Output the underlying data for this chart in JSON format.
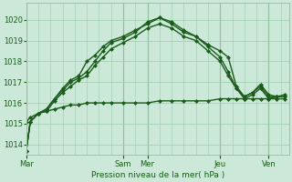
{
  "xlabel": "Pression niveau de la mer( hPa )",
  "bg_color": "#cce8d8",
  "grid_color": "#99ccaa",
  "line_color": "#1a5c1a",
  "ylim": [
    1013.5,
    1020.8
  ],
  "yticks": [
    1014,
    1015,
    1016,
    1017,
    1018,
    1019,
    1020
  ],
  "xlim": [
    0,
    130
  ],
  "day_labels": [
    "Mar",
    "Sam",
    "Mer",
    "Jeu",
    "Ven"
  ],
  "day_positions": [
    0,
    48,
    60,
    96,
    120
  ],
  "series1_x": [
    0,
    2,
    6,
    10,
    14,
    18,
    22,
    26,
    30,
    34,
    38,
    42,
    48,
    54,
    60,
    66,
    72,
    78,
    84,
    90,
    96,
    100,
    104,
    108,
    112,
    116,
    120,
    124,
    128
  ],
  "series1_y": [
    1013.7,
    1015.1,
    1015.5,
    1015.7,
    1016.2,
    1016.7,
    1017.1,
    1017.3,
    1018.0,
    1018.3,
    1018.7,
    1019.0,
    1019.2,
    1019.5,
    1019.8,
    1020.1,
    1019.9,
    1019.5,
    1019.2,
    1018.8,
    1018.5,
    1018.2,
    1016.8,
    1016.3,
    1016.5,
    1016.9,
    1016.4,
    1016.3,
    1016.4
  ],
  "series2_x": [
    0,
    2,
    6,
    10,
    14,
    18,
    22,
    26,
    30,
    34,
    38,
    42,
    48,
    54,
    60,
    66,
    72,
    78,
    84,
    90,
    96,
    100,
    104,
    108,
    112,
    116,
    120,
    124,
    128
  ],
  "series2_y": [
    1013.7,
    1015.1,
    1015.5,
    1015.7,
    1016.2,
    1016.6,
    1017.0,
    1017.2,
    1017.5,
    1018.0,
    1018.5,
    1018.9,
    1019.1,
    1019.4,
    1019.9,
    1020.1,
    1019.8,
    1019.4,
    1019.2,
    1018.7,
    1018.2,
    1017.5,
    1016.7,
    1016.3,
    1016.5,
    1016.8,
    1016.3,
    1016.3,
    1016.3
  ],
  "series3_x": [
    0,
    2,
    6,
    10,
    14,
    18,
    22,
    26,
    30,
    34,
    38,
    42,
    48,
    54,
    60,
    66,
    72,
    78,
    84,
    90,
    96,
    100,
    104,
    108,
    112,
    116,
    120,
    124,
    128
  ],
  "series3_y": [
    1013.7,
    1015.1,
    1015.5,
    1015.6,
    1016.1,
    1016.5,
    1016.8,
    1017.1,
    1017.3,
    1017.8,
    1018.2,
    1018.6,
    1018.9,
    1019.2,
    1019.6,
    1019.8,
    1019.6,
    1019.2,
    1019.0,
    1018.5,
    1018.0,
    1017.3,
    1016.7,
    1016.2,
    1016.4,
    1016.7,
    1016.2,
    1016.3,
    1016.3
  ],
  "series_flat_x": [
    0,
    2,
    6,
    10,
    14,
    18,
    22,
    26,
    30,
    34,
    38,
    42,
    48,
    54,
    60,
    66,
    72,
    78,
    84,
    90,
    96,
    100,
    104,
    108,
    112,
    116,
    120,
    124,
    128
  ],
  "series_flat_y": [
    1015.1,
    1015.3,
    1015.5,
    1015.6,
    1015.7,
    1015.8,
    1015.9,
    1015.9,
    1016.0,
    1016.0,
    1016.0,
    1016.0,
    1016.0,
    1016.0,
    1016.0,
    1016.1,
    1016.1,
    1016.1,
    1016.1,
    1016.1,
    1016.2,
    1016.2,
    1016.2,
    1016.2,
    1016.2,
    1016.2,
    1016.2,
    1016.2,
    1016.2
  ]
}
